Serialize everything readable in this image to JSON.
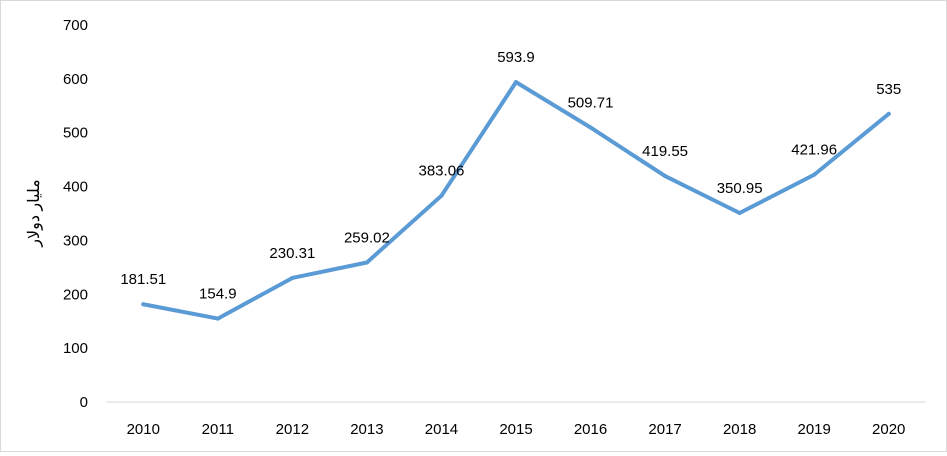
{
  "chart_data": {
    "type": "line",
    "title": "",
    "xlabel": "",
    "ylabel": "مليار دولار",
    "categories": [
      "2010",
      "2011",
      "2012",
      "2013",
      "2014",
      "2015",
      "2016",
      "2017",
      "2018",
      "2019",
      "2020"
    ],
    "series": [
      {
        "values": [
          181.51,
          154.9,
          230.31,
          259.02,
          383.06,
          593.9,
          509.71,
          419.55,
          350.95,
          421.96,
          535
        ],
        "data_labels": [
          "181.51",
          "154.9",
          "230.31",
          "259.02",
          "383.06",
          "593.9",
          "509.71",
          "419.55",
          "350.95",
          "421.96",
          "535"
        ],
        "color": "#5b9bd5"
      }
    ],
    "ylim": [
      0,
      700
    ],
    "yticks": [
      "0",
      "100",
      "200",
      "300",
      "400",
      "500",
      "600",
      "700"
    ],
    "grid": false,
    "legend": "none"
  }
}
